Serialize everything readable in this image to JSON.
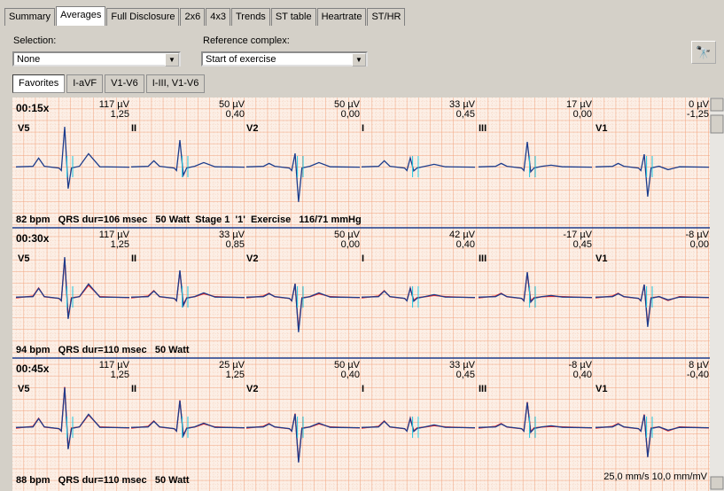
{
  "tabs": [
    "Summary",
    "Averages",
    "Full Disclosure",
    "2x6",
    "4x3",
    "Trends",
    "ST table",
    "Heartrate",
    "ST/HR"
  ],
  "selection": {
    "label": "Selection:",
    "value": "None"
  },
  "reference": {
    "label": "Reference complex:",
    "value": "Start of exercise"
  },
  "subtabs": [
    "Favorites",
    "I-aVF",
    "V1-V6",
    "I-III, V1-V6"
  ],
  "leads": [
    "V5",
    "II",
    "V2",
    "I",
    "III",
    "V1"
  ],
  "strips": [
    {
      "time": "00:15x",
      "values": [
        [
          "117 µV",
          "1,25"
        ],
        [
          "50 µV",
          "0,40"
        ],
        [
          "50 µV",
          "0,00"
        ],
        [
          "33 µV",
          "0,45"
        ],
        [
          "17 µV",
          "0,00"
        ],
        [
          "0 µV",
          "-1,25"
        ]
      ],
      "footer": "82 bpm   QRS dur=106 msec   50 Watt  Stage 1  '1'  Exercise   116/71 mmHg"
    },
    {
      "time": "00:30x",
      "values": [
        [
          "117 µV",
          "1,25"
        ],
        [
          "33 µV",
          "0,85"
        ],
        [
          "50 µV",
          "0,00"
        ],
        [
          "42 µV",
          "0,40"
        ],
        [
          "-17 µV",
          "0,45"
        ],
        [
          "-8 µV",
          "0,00"
        ]
      ],
      "footer": "94 bpm   QRS dur=110 msec   50 Watt"
    },
    {
      "time": "00:45x",
      "values": [
        [
          "117 µV",
          "1,25"
        ],
        [
          "25 µV",
          "1,25"
        ],
        [
          "50 µV",
          "0,40"
        ],
        [
          "33 µV",
          "0,45"
        ],
        [
          "-8 µV",
          "0,40"
        ],
        [
          "8 µV",
          "-0,40"
        ]
      ],
      "footer": "88 bpm   QRS dur=110 msec   50 Watt"
    }
  ],
  "scale": "25,0 mm/s 10,0 mm/mV"
}
